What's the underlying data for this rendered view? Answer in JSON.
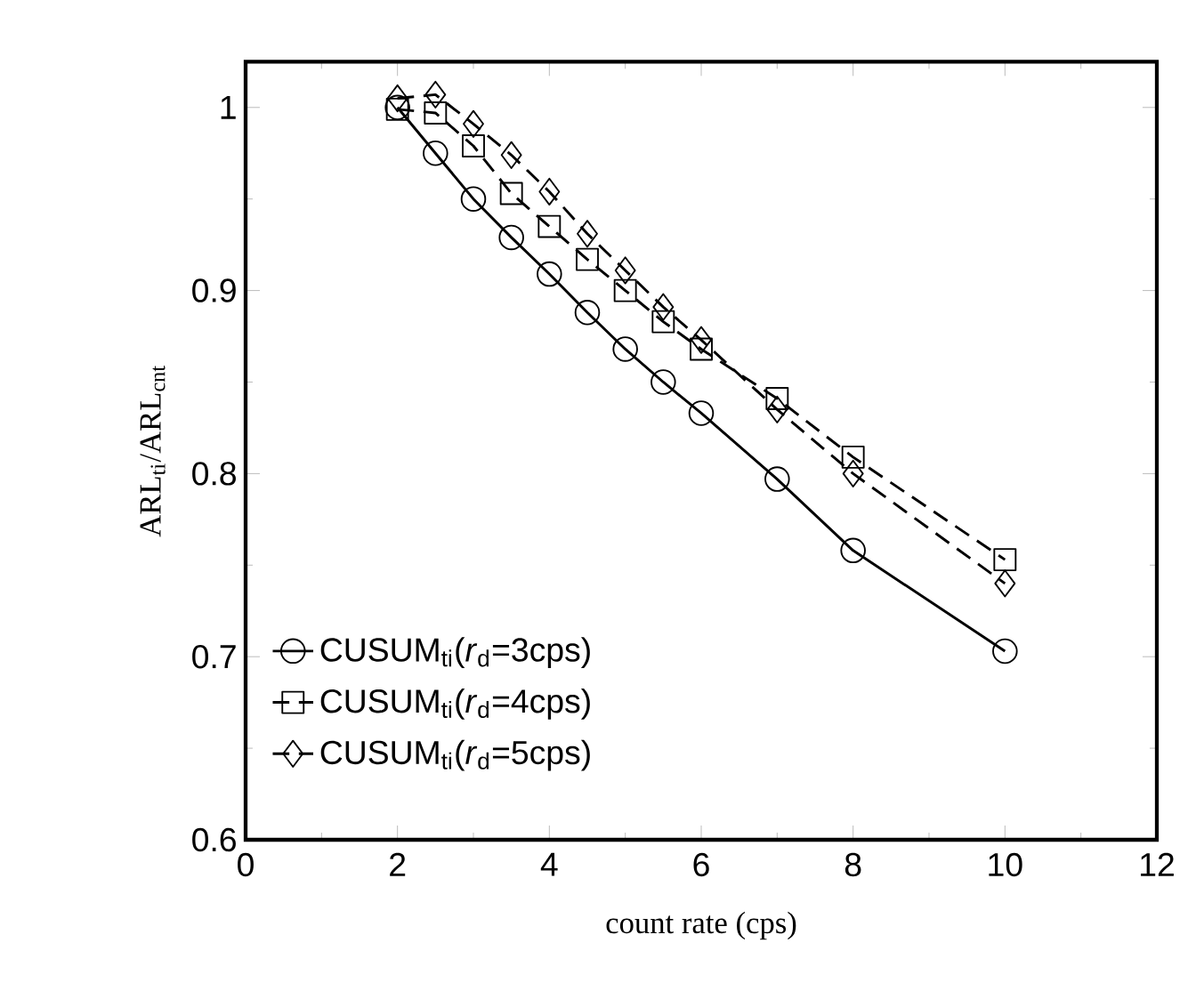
{
  "chart_data": {
    "type": "line",
    "xlabel": "count rate (cps)",
    "ylabel": "ARL$_{ti}$/ARL$_{cnt}$",
    "x": [
      2,
      2.5,
      3,
      3.5,
      4,
      4.5,
      5,
      5.5,
      6,
      7,
      8,
      10
    ],
    "xlim": [
      0,
      12
    ],
    "xticks": [
      0,
      2,
      4,
      6,
      8,
      10,
      12
    ],
    "ylim": [
      0.6,
      1.025
    ],
    "yticks": [
      0.6,
      0.7,
      0.8,
      0.9,
      1
    ],
    "legend": "bottom left",
    "grid": false,
    "series": [
      {
        "name": "CUSUM$_{ti}$(*r*$_{d}$=3cps)",
        "color": "#000000",
        "marker": "circle",
        "line_style": "solid",
        "values": [
          1.0,
          0.975,
          0.95,
          0.929,
          0.909,
          0.888,
          0.868,
          0.85,
          0.833,
          0.797,
          0.758,
          0.703
        ]
      },
      {
        "name": "CUSUM$_{ti}$(*r*$_{d}$=4cps)",
        "color": "#000000",
        "marker": "square",
        "line_style": "dashed",
        "values": [
          0.999,
          0.997,
          0.979,
          0.953,
          0.935,
          0.917,
          0.9,
          0.883,
          0.868,
          0.841,
          0.809,
          0.753
        ]
      },
      {
        "name": "CUSUM$_{ti}$(*r*$_{d}$=5cps)",
        "color": "#000000",
        "marker": "diamond",
        "line_style": "dashed",
        "values": [
          1.005,
          1.007,
          0.991,
          0.974,
          0.954,
          0.931,
          0.911,
          0.891,
          0.873,
          0.835,
          0.8,
          0.74
        ]
      }
    ]
  }
}
